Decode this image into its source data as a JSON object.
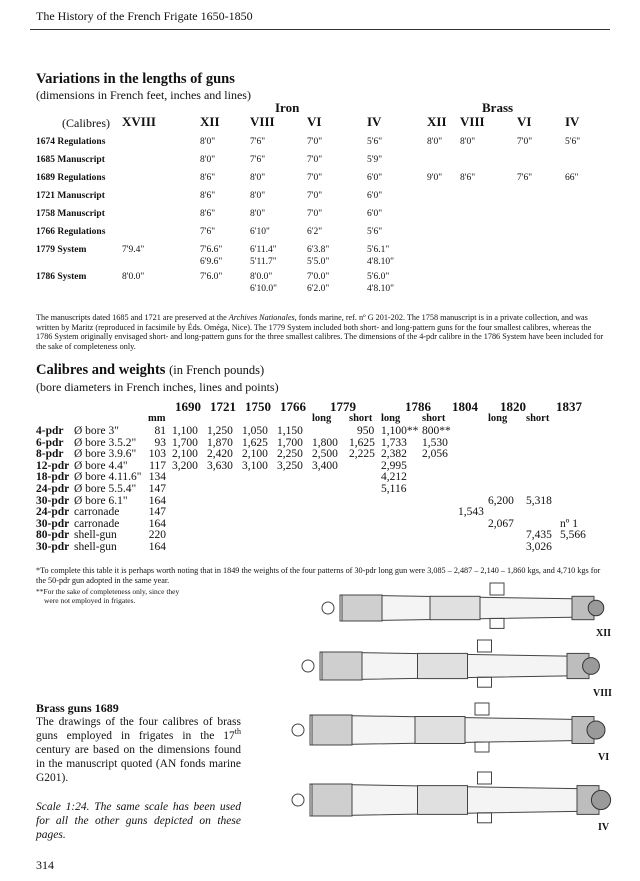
{
  "header": {
    "title": "The History of the French Frigate 1650-1850"
  },
  "lengths": {
    "title": "Variations in the lengths of guns",
    "subtitle": "(dimensions in French feet, inches and lines)",
    "group_iron": "Iron",
    "group_brass": "Brass",
    "calibres_label": "(Calibres)",
    "columns": [
      "XVIII",
      "XII",
      "VIII",
      "VI",
      "IV",
      "XII",
      "VIII",
      "VI",
      "IV"
    ],
    "rows": [
      {
        "label": "1674 Regulations",
        "cells": [
          [
            "",
            ""
          ],
          [
            "8'0\"",
            ""
          ],
          [
            "7'6\"",
            ""
          ],
          [
            "7'0\"",
            ""
          ],
          [
            "5'6\"",
            ""
          ],
          [
            "8'0\"",
            ""
          ],
          [
            "8'0\"",
            ""
          ],
          [
            "7'0\"",
            ""
          ],
          [
            "5'6\"",
            ""
          ]
        ]
      },
      {
        "label": "1685 Manuscript",
        "cells": [
          [
            "",
            ""
          ],
          [
            "8'0\"",
            ""
          ],
          [
            "7'6\"",
            ""
          ],
          [
            "7'0\"",
            ""
          ],
          [
            "5'9\"",
            ""
          ],
          [
            "",
            ""
          ],
          [
            "",
            ""
          ],
          [
            "",
            ""
          ],
          [
            "",
            ""
          ]
        ]
      },
      {
        "label": "1689 Regulations",
        "cells": [
          [
            "",
            ""
          ],
          [
            "8'6\"",
            ""
          ],
          [
            "8'0\"",
            ""
          ],
          [
            "7'0\"",
            ""
          ],
          [
            "6'0\"",
            ""
          ],
          [
            "9'0\"",
            ""
          ],
          [
            "8'6\"",
            ""
          ],
          [
            "7'6\"",
            ""
          ],
          [
            "66\"",
            ""
          ]
        ]
      },
      {
        "label": "1721 Manuscript",
        "cells": [
          [
            "",
            ""
          ],
          [
            "8'6\"",
            ""
          ],
          [
            "8'0\"",
            ""
          ],
          [
            "7'0\"",
            ""
          ],
          [
            "6'0\"",
            ""
          ],
          [
            "",
            ""
          ],
          [
            "",
            ""
          ],
          [
            "",
            ""
          ],
          [
            "",
            ""
          ]
        ]
      },
      {
        "label": "1758 Manuscript",
        "cells": [
          [
            "",
            ""
          ],
          [
            "8'6\"",
            ""
          ],
          [
            "8'0\"",
            ""
          ],
          [
            "7'0\"",
            ""
          ],
          [
            "6'0\"",
            ""
          ],
          [
            "",
            ""
          ],
          [
            "",
            ""
          ],
          [
            "",
            ""
          ],
          [
            "",
            ""
          ]
        ]
      },
      {
        "label": "1766 Regulations",
        "cells": [
          [
            "",
            ""
          ],
          [
            "7'6\"",
            ""
          ],
          [
            "6'10\"",
            ""
          ],
          [
            "6'2\"",
            ""
          ],
          [
            "5'6\"",
            ""
          ],
          [
            "",
            ""
          ],
          [
            "",
            ""
          ],
          [
            "",
            ""
          ],
          [
            "",
            ""
          ]
        ]
      },
      {
        "label": "1779 System",
        "cells": [
          [
            "7'9.4\"",
            ""
          ],
          [
            "7'6.6\"",
            "6'9.6\""
          ],
          [
            "6'11.4\"",
            "5'11.7\""
          ],
          [
            "6'3.8\"",
            "5'5.0\""
          ],
          [
            "5'6.1\"",
            "4'8.10\""
          ],
          [
            "",
            ""
          ],
          [
            "",
            ""
          ],
          [
            "",
            ""
          ],
          [
            "",
            ""
          ]
        ]
      },
      {
        "label": "1786 System",
        "cells": [
          [
            "8'0.0\"",
            ""
          ],
          [
            "7'6.0\"",
            ""
          ],
          [
            "8'0.0\"",
            "6'10.0\""
          ],
          [
            "7'0.0\"",
            "6'2.0\""
          ],
          [
            "5'6.0\"",
            "4'8.10\""
          ],
          [
            "",
            ""
          ],
          [
            "",
            ""
          ],
          [
            "",
            ""
          ],
          [
            "",
            ""
          ]
        ]
      }
    ],
    "note_a": "The manuscripts dated 1685 and 1721 are preserved at the ",
    "note_i": "Archives Nationales",
    "note_b": ", fonds marine, ref. nº G 201-202. The 1758 manuscript is in a private collection, and was written by Maritz (reproduced in facsimile by Éds. Oméga, Nice). The 1779 System included both short- and long-pattern guns for the four smallest calibres, whereas the 1786 System originally envisaged short- and long-pattern guns for the three smallest calibres. The dimensions of the 4-pdr calibre in the 1786 System have been included for the sake of completeness only."
  },
  "weights": {
    "title": "Calibres and weights",
    "title_suffix": "(in French pounds)",
    "subtitle": "(bore diameters in French inches, lines and points)",
    "years": [
      "1690",
      "1721",
      "1750",
      "1766",
      "1779",
      "1786",
      "1804",
      "1820",
      "1837"
    ],
    "subheads": [
      "mm",
      "long",
      "short",
      "long",
      "short",
      "long",
      "short"
    ],
    "rows": [
      {
        "cal": "4-pdr",
        "desc": "Ø bore 3\"",
        "mm": "81",
        "v": [
          "1,100",
          "1,250",
          "1,050",
          "1,150",
          "",
          "950",
          "1,100**",
          "800**",
          "",
          "",
          "",
          ""
        ]
      },
      {
        "cal": "6-pdr",
        "desc": "Ø bore 3.5.2\"",
        "mm": "93",
        "v": [
          "1,700",
          "1,870",
          "1,625",
          "1,700",
          "1,800",
          "1,625",
          "1,733",
          "1,530",
          "",
          "",
          "",
          ""
        ]
      },
      {
        "cal": "8-pdr",
        "desc": "Ø bore 3.9.6\"",
        "mm": "103",
        "v": [
          "2,100",
          "2,420",
          "2,100",
          "2,250",
          "2,500",
          "2,225",
          "2,382",
          "2,056",
          "",
          "",
          "",
          ""
        ]
      },
      {
        "cal": "12-pdr",
        "desc": "Ø bore 4.4\"",
        "mm": "117",
        "v": [
          "3,200",
          "3,630",
          "3,100",
          "3,250",
          "3,400",
          "",
          "2,995",
          "",
          "",
          "",
          "",
          ""
        ]
      },
      {
        "cal": "18-pdr",
        "desc": "Ø bore 4.11.6\"",
        "mm": "134",
        "v": [
          "",
          "",
          "",
          "",
          "",
          "",
          "4,212",
          "",
          "",
          "",
          "",
          ""
        ]
      },
      {
        "cal": "24-pdr",
        "desc": "Ø bore 5.5.4\"",
        "mm": "147",
        "v": [
          "",
          "",
          "",
          "",
          "",
          "",
          "5,116",
          "",
          "",
          "",
          "",
          ""
        ]
      },
      {
        "cal": "30-pdr",
        "desc": "Ø bore 6.1\"",
        "mm": "164",
        "v": [
          "",
          "",
          "",
          "",
          "",
          "",
          "",
          "",
          "",
          "6,200",
          "5,318",
          ""
        ]
      },
      {
        "cal": "24-pdr",
        "desc": "carronade",
        "mm": "147",
        "v": [
          "",
          "",
          "",
          "",
          "",
          "",
          "",
          "",
          "1,543",
          "",
          "",
          ""
        ]
      },
      {
        "cal": "30-pdr",
        "desc": "carronade",
        "mm": "164",
        "v": [
          "",
          "",
          "",
          "",
          "",
          "",
          "",
          "",
          "",
          "2,067",
          "",
          "nº 1"
        ]
      },
      {
        "cal": "80-pdr",
        "desc": "shell-gun",
        "mm": "220",
        "v": [
          "",
          "",
          "",
          "",
          "",
          "",
          "",
          "",
          "",
          "",
          "7,435",
          "5,566"
        ]
      },
      {
        "cal": "30-pdr",
        "desc": "shell-gun",
        "mm": "164",
        "v": [
          "",
          "",
          "",
          "",
          "",
          "",
          "",
          "",
          "",
          "",
          "3,026",
          ""
        ]
      }
    ],
    "note1": "*To complete this table it is perhaps worth noting that in 1849 the weights of the four patterns of 30-pdr long gun were 3,085 – 2,487 – 2,140 – 1,860 kgs, and 4,710 kgs for the 50-pdr gun adopted in the same year.",
    "note2a": "**For the sake of completeness only, since they",
    "note2b": "were not employed in frigates."
  },
  "brass": {
    "title": "Brass guns 1689",
    "text_a": "The drawings of the four calibres of brass guns employed in frigates in the 17",
    "text_sup": "th",
    "text_b": " century are based on the dimensions found in the manuscript quoted (AN fonds marine G201).",
    "scale": "Scale 1:24. The same scale has been used for all the other guns depicted on these pages."
  },
  "cannons": [
    "XII",
    "VIII",
    "VI",
    "IV"
  ],
  "page_number": "314"
}
